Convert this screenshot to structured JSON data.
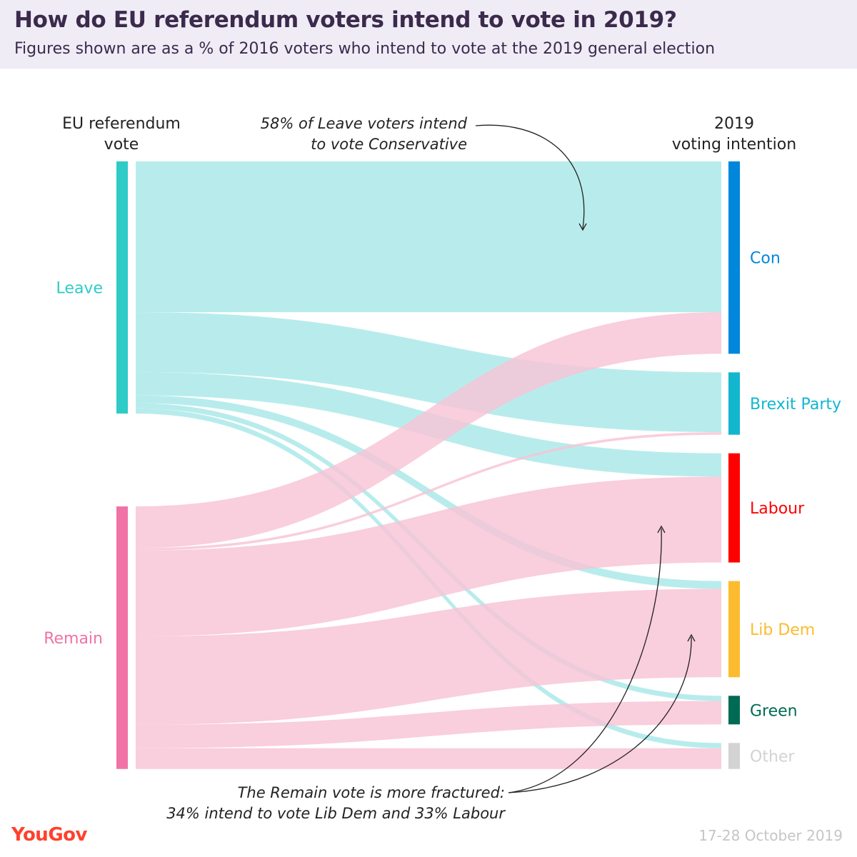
{
  "header": {
    "title": "How do EU referendum voters intend to vote in 2019?",
    "subtitle": "Figures shown are as a % of 2016 voters who intend to vote at the 2019 general election"
  },
  "chart_data": {
    "type": "sankey",
    "left_header": [
      "EU referendum",
      "vote"
    ],
    "right_header": [
      "2019",
      "voting intention"
    ],
    "sources": [
      {
        "name": "Leave",
        "color": "#2ecbc7"
      },
      {
        "name": "Remain",
        "color": "#f073a6"
      }
    ],
    "targets": [
      {
        "name": "Con",
        "color": "#0087dc"
      },
      {
        "name": "Brexit Party",
        "color": "#12b6cf"
      },
      {
        "name": "Labour",
        "color": "#ff0000"
      },
      {
        "name": "Lib Dem",
        "color": "#fdbb30"
      },
      {
        "name": "Green",
        "color": "#006b54"
      },
      {
        "name": "Other",
        "color": "#d3d3d3"
      }
    ],
    "flows": [
      {
        "source": "Leave",
        "target": "Con",
        "value": 58
      },
      {
        "source": "Leave",
        "target": "Brexit Party",
        "value": 23
      },
      {
        "source": "Leave",
        "target": "Labour",
        "value": 9
      },
      {
        "source": "Leave",
        "target": "Lib Dem",
        "value": 3
      },
      {
        "source": "Leave",
        "target": "Green",
        "value": 2
      },
      {
        "source": "Leave",
        "target": "Other",
        "value": 2
      },
      {
        "source": "Remain",
        "target": "Con",
        "value": 16
      },
      {
        "source": "Remain",
        "target": "Brexit Party",
        "value": 1
      },
      {
        "source": "Remain",
        "target": "Labour",
        "value": 33
      },
      {
        "source": "Remain",
        "target": "Lib Dem",
        "value": 34
      },
      {
        "source": "Remain",
        "target": "Green",
        "value": 9
      },
      {
        "source": "Remain",
        "target": "Other",
        "value": 8
      }
    ],
    "flow_colors": {
      "Leave": "#a8e8e8",
      "Remain": "#f8c3d5"
    },
    "annotations": [
      {
        "lines": [
          "58% of Leave voters intend",
          "to vote Conservative"
        ]
      },
      {
        "lines": [
          "The Remain vote is more fractured:",
          "34% intend to vote Lib Dem and 33% Labour"
        ]
      }
    ]
  },
  "footer": {
    "brand": "YouGov",
    "date": "17-28 October 2019"
  }
}
